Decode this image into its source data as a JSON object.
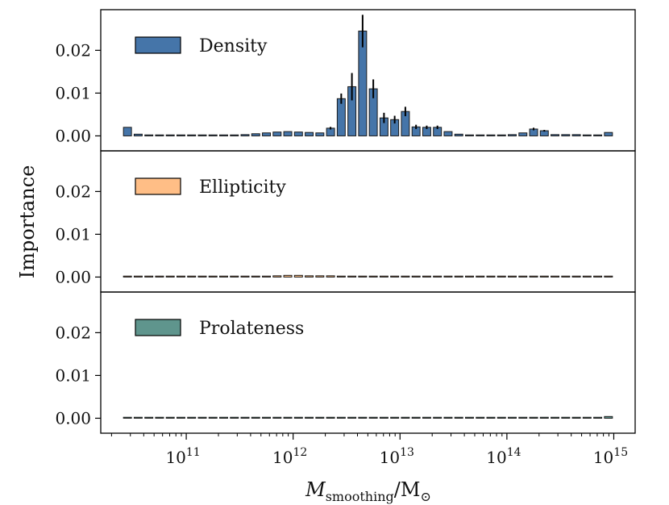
{
  "chart_data": {
    "type": "bar",
    "layout": "3 vertically stacked panels sharing a logarithmic x axis",
    "xlabel": "M_smoothing/M_⊙",
    "xlabel_parts": {
      "main": "M",
      "sub": "smoothing",
      "sep": "/M",
      "sub2": "⊙"
    },
    "ylabel": "Importance",
    "xscale": "log",
    "xlim_log10": [
      10.2,
      15.2
    ],
    "ylim": [
      -0.0035,
      0.0295
    ],
    "x_ticks": [
      {
        "exp": 11,
        "base": "10",
        "sup": "11"
      },
      {
        "exp": 12,
        "base": "10",
        "sup": "12"
      },
      {
        "exp": 13,
        "base": "10",
        "sup": "13"
      },
      {
        "exp": 14,
        "base": "10",
        "sup": "14"
      },
      {
        "exp": 15,
        "base": "10",
        "sup": "15"
      }
    ],
    "y_ticks": [
      {
        "value": 0.0,
        "label": "0.00"
      },
      {
        "value": 0.01,
        "label": "0.01"
      },
      {
        "value": 0.02,
        "label": "0.02"
      }
    ],
    "x_log10": [
      10.45,
      10.55,
      10.65,
      10.75,
      10.85,
      10.95,
      11.05,
      11.15,
      11.25,
      11.35,
      11.45,
      11.55,
      11.65,
      11.75,
      11.85,
      11.95,
      12.05,
      12.15,
      12.25,
      12.35,
      12.45,
      12.55,
      12.65,
      12.75,
      12.85,
      12.95,
      13.05,
      13.15,
      13.25,
      13.35,
      13.45,
      13.55,
      13.65,
      13.75,
      13.85,
      13.95,
      14.05,
      14.15,
      14.25,
      14.35,
      14.45,
      14.55,
      14.65,
      14.75,
      14.85,
      14.95
    ],
    "series": [
      {
        "name": "Density",
        "color": "#4575a9",
        "values": [
          0.002,
          0.0004,
          0.0002,
          0.0001,
          0.0001,
          0.0001,
          0.0001,
          0.0001,
          0.0001,
          0.0001,
          0.0002,
          0.0003,
          0.0005,
          0.0007,
          0.0009,
          0.001,
          0.0009,
          0.0008,
          0.0007,
          0.0018,
          0.0087,
          0.0115,
          0.0245,
          0.011,
          0.0042,
          0.0038,
          0.0057,
          0.0021,
          0.002,
          0.002,
          0.001,
          0.0004,
          0.0002,
          0.0002,
          0.0002,
          0.0002,
          0.0003,
          0.0007,
          0.0016,
          0.0012,
          0.0003,
          0.0003,
          0.0003,
          0.0001,
          0.0001,
          0.0008
        ],
        "errors": [
          0,
          0,
          0,
          0,
          0,
          0,
          0,
          0,
          0,
          0,
          0,
          0,
          0,
          0,
          0,
          0,
          0,
          0,
          0,
          0.0003,
          0.0012,
          0.0032,
          0.0038,
          0.0022,
          0.0012,
          0.0009,
          0.0011,
          0.0005,
          0.0004,
          0.0004,
          0,
          0,
          0,
          0,
          0,
          0,
          0,
          0,
          0.0003,
          0.0002,
          0,
          0,
          0,
          0,
          0,
          0
        ]
      },
      {
        "name": "Ellipticity",
        "color": "#ffbe86",
        "values": [
          0.0002,
          0.0001,
          0.0001,
          0.0001,
          0.0001,
          0.0001,
          0.0001,
          0.0001,
          0.0001,
          0.0001,
          0.0001,
          0.0001,
          0.0001,
          0.0002,
          0.0003,
          0.0004,
          0.0004,
          0.0003,
          0.0003,
          0.0003,
          0.0002,
          0.0002,
          0.0002,
          0.0002,
          0.0002,
          0.0002,
          0.0002,
          0.0001,
          0.0001,
          0.0001,
          0.0001,
          0.0001,
          0.0001,
          0.0001,
          0.0001,
          0.0001,
          0.0001,
          0.0001,
          0.0001,
          0.0001,
          0.0001,
          0.0001,
          0.0001,
          0.0001,
          0.0001,
          0.0002
        ],
        "errors": []
      },
      {
        "name": "Prolateness",
        "color": "#5f958d",
        "values": [
          0.0001,
          0.0001,
          0.0001,
          0.0001,
          0.0001,
          0.0001,
          0.0001,
          0.0001,
          0.0001,
          0.0001,
          0.0001,
          0.0001,
          0.0001,
          0.0001,
          0.0001,
          0.0001,
          0.0001,
          0.0001,
          0.0001,
          0.0001,
          0.0001,
          0.0001,
          0.0001,
          0.0001,
          0.0001,
          0.0001,
          0.0001,
          0.0001,
          0.0001,
          0.0001,
          0.0001,
          0.0001,
          0.0001,
          0.0001,
          0.0001,
          0.0001,
          0.0001,
          0.0001,
          0.0001,
          0.0001,
          0.0001,
          0.0002,
          0.0002,
          0.0002,
          0.0001,
          0.0004
        ],
        "errors": []
      }
    ]
  }
}
